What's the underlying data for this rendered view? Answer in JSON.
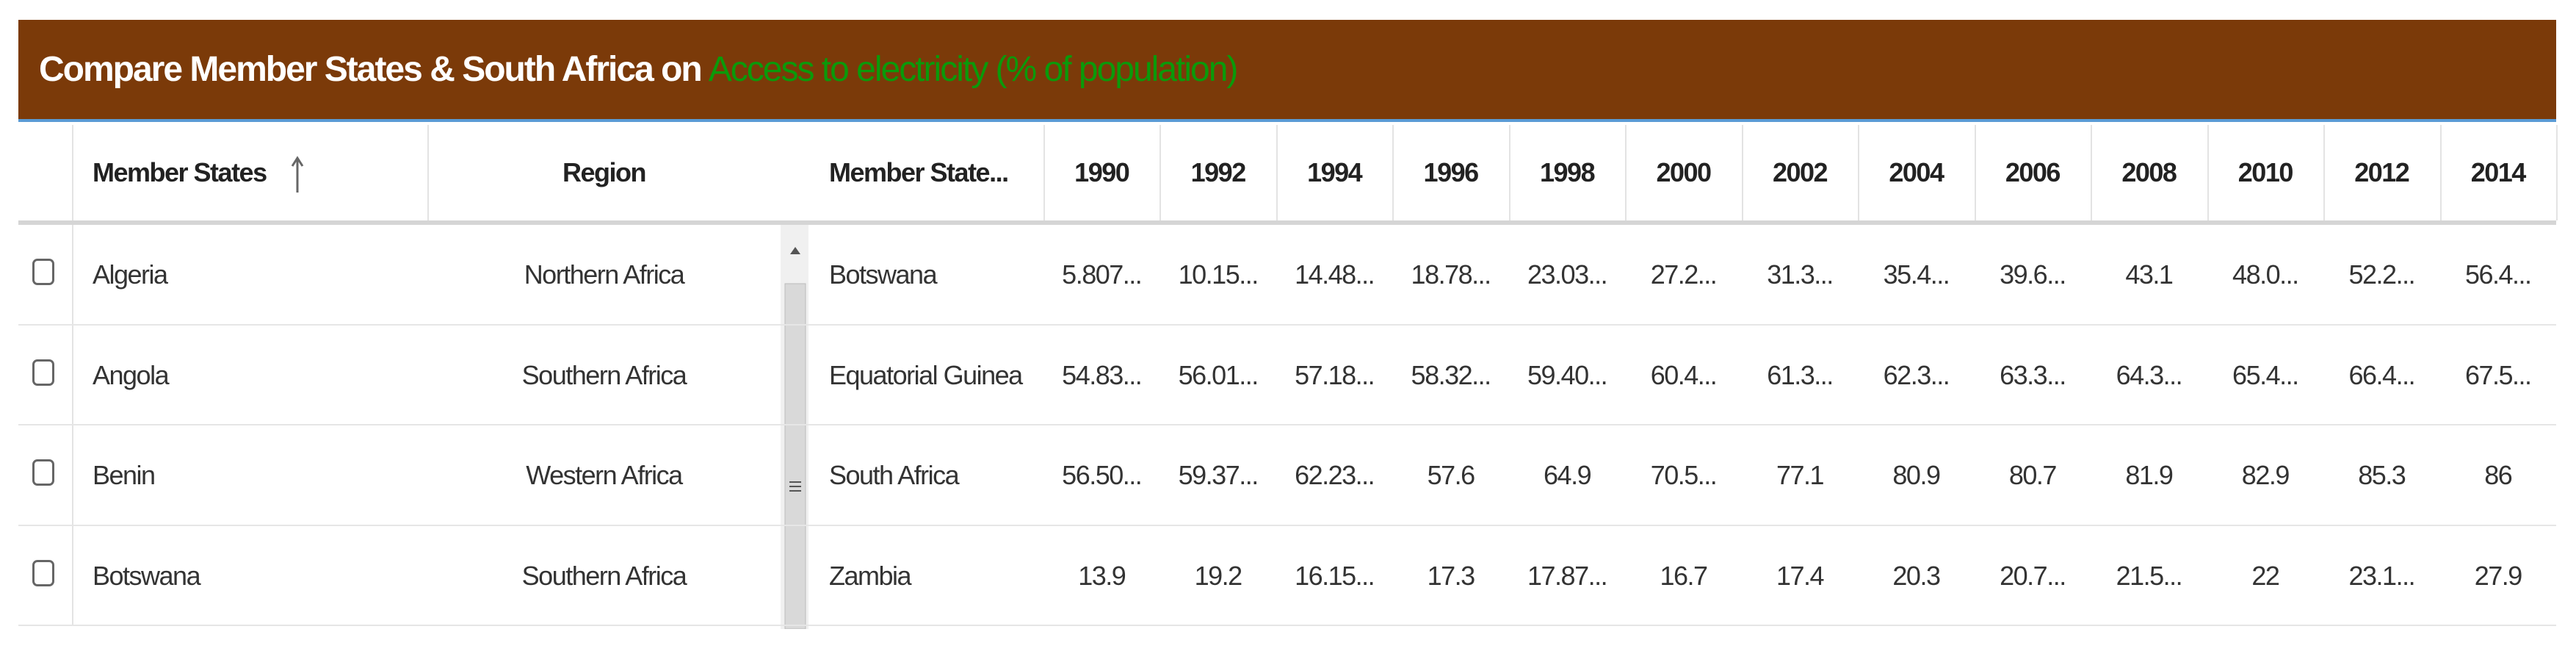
{
  "header": {
    "title": "Compare Member States & South Africa on",
    "indicator": "Access to electricity (% of population)"
  },
  "left_table": {
    "columns": [
      "Member States",
      "Region"
    ],
    "rows": [
      [
        "Algeria",
        "Northern Africa"
      ],
      [
        "Angola",
        "Southern Africa"
      ],
      [
        "Benin",
        "Western Africa"
      ],
      [
        "Botswana",
        "Southern Africa"
      ]
    ]
  },
  "right_table": {
    "columns": [
      "Member State...",
      "1990",
      "1992",
      "1994",
      "1996",
      "1998",
      "2000",
      "2002",
      "2004",
      "2006",
      "2008",
      "2010",
      "2012",
      "2014"
    ],
    "rows": [
      [
        "Botswana",
        "5.807...",
        "10.15...",
        "14.48...",
        "18.78...",
        "23.03...",
        "27.2...",
        "31.3...",
        "35.4...",
        "39.6...",
        "43.1",
        "48.0...",
        "52.2...",
        "56.4..."
      ],
      [
        "Equatorial Guinea",
        "54.83...",
        "56.01...",
        "57.18...",
        "58.32...",
        "59.40...",
        "60.4...",
        "61.3...",
        "62.3...",
        "63.3...",
        "64.3...",
        "65.4...",
        "66.4...",
        "67.5..."
      ],
      [
        "South Africa",
        "56.50...",
        "59.37...",
        "62.23...",
        "57.6",
        "64.9",
        "70.5...",
        "77.1",
        "80.9",
        "80.7",
        "81.9",
        "82.9",
        "85.3",
        "86"
      ],
      [
        "Zambia",
        "13.9",
        "19.2",
        "16.15...",
        "17.3",
        "17.87...",
        "16.7",
        "17.4",
        "20.3",
        "20.7...",
        "21.5...",
        "22",
        "23.1...",
        "27.9"
      ]
    ]
  }
}
